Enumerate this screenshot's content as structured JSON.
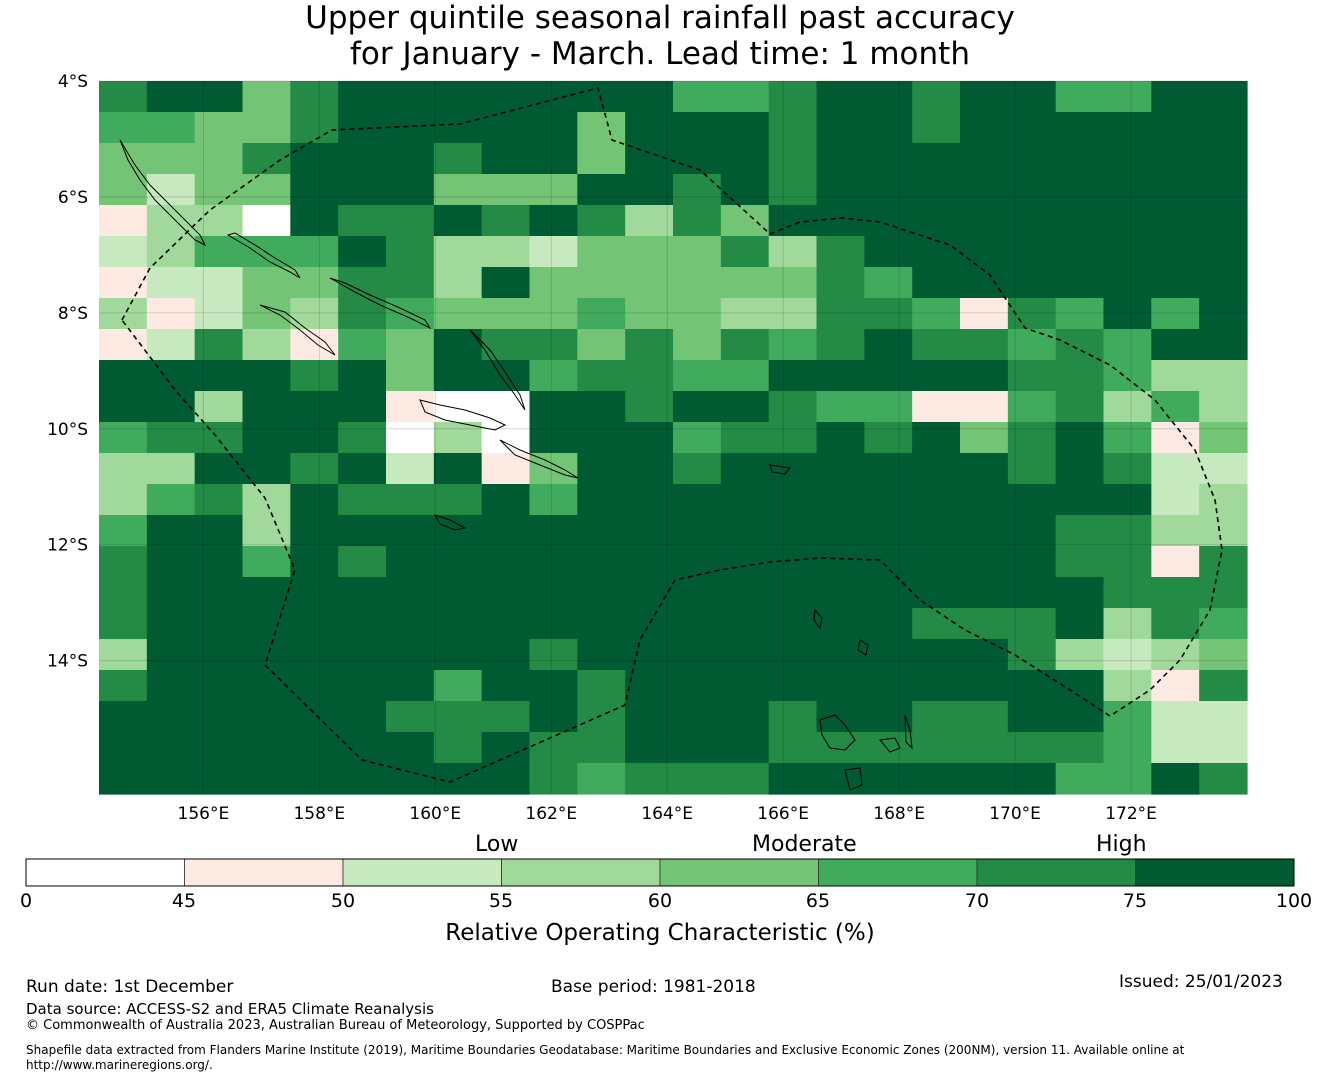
{
  "title": {
    "line1": "Upper quintile seasonal rainfall past accuracy",
    "line2": "for January - March. Lead time: 1 month"
  },
  "map": {
    "lat_labels": [
      "4°S",
      "6°S",
      "8°S",
      "10°S",
      "12°S",
      "14°S"
    ],
    "lon_labels": [
      "156°E",
      "158°E",
      "160°E",
      "162°E",
      "164°E",
      "166°E",
      "168°E",
      "170°E",
      "172°E"
    ],
    "lat_range": [
      -16.3,
      -4.0
    ],
    "lon_range": [
      154.2,
      174.0
    ],
    "grid_cols": 24,
    "grid_rows": 23,
    "grid_levels": [
      "000000000000000000000000",
      "000000000000000000000000",
      "000000000000000000000000",
      "000000000000000000000000",
      "000000000000000000000000",
      "000000000000000000000000",
      "000000000000000000000000",
      "000000000000000000000000",
      "000000000000000000000000",
      "000000000000000000000000",
      "000000000000000000000000",
      "000000000000000000000000",
      "000000000000000000000000",
      "000000000000000000000000",
      "000000000000000000000000",
      "000000000000000000000000",
      "000000000000000000000000",
      "000000000000000000000000",
      "000000000000000000000000",
      "000000000000000000000000",
      "000000000000000000000000",
      "000000000000000000000000",
      "000000000000000000000000"
    ],
    "grid_overrides": [
      [
        0,
        0,
        1
      ],
      [
        0,
        1,
        0
      ],
      [
        0,
        2,
        0
      ],
      [
        0,
        3,
        3
      ],
      [
        0,
        4,
        1
      ],
      [
        0,
        12,
        2
      ],
      [
        0,
        13,
        2
      ],
      [
        0,
        14,
        1
      ],
      [
        0,
        17,
        1
      ],
      [
        0,
        20,
        2
      ],
      [
        0,
        21,
        2
      ],
      [
        1,
        0,
        2
      ],
      [
        1,
        1,
        2
      ],
      [
        1,
        2,
        3
      ],
      [
        1,
        3,
        3
      ],
      [
        1,
        4,
        1
      ],
      [
        1,
        10,
        3
      ],
      [
        1,
        14,
        1
      ],
      [
        1,
        17,
        1
      ],
      [
        2,
        0,
        3
      ],
      [
        2,
        1,
        3
      ],
      [
        2,
        2,
        3
      ],
      [
        2,
        3,
        1
      ],
      [
        2,
        7,
        1
      ],
      [
        2,
        10,
        3
      ],
      [
        2,
        14,
        1
      ],
      [
        3,
        0,
        3
      ],
      [
        3,
        1,
        5
      ],
      [
        3,
        2,
        3
      ],
      [
        3,
        3,
        3
      ],
      [
        3,
        7,
        3
      ],
      [
        3,
        8,
        3
      ],
      [
        3,
        9,
        3
      ],
      [
        3,
        12,
        1
      ],
      [
        3,
        14,
        1
      ],
      [
        4,
        0,
        6
      ],
      [
        4,
        1,
        4
      ],
      [
        4,
        2,
        4
      ],
      [
        4,
        3,
        9
      ],
      [
        4,
        5,
        1
      ],
      [
        4,
        6,
        1
      ],
      [
        4,
        8,
        1
      ],
      [
        4,
        10,
        1
      ],
      [
        4,
        11,
        4
      ],
      [
        4,
        12,
        1
      ],
      [
        4,
        13,
        3
      ],
      [
        5,
        0,
        5
      ],
      [
        5,
        1,
        4
      ],
      [
        5,
        2,
        2
      ],
      [
        5,
        3,
        2
      ],
      [
        5,
        4,
        2
      ],
      [
        5,
        6,
        1
      ],
      [
        5,
        7,
        4
      ],
      [
        5,
        8,
        4
      ],
      [
        5,
        9,
        5
      ],
      [
        5,
        10,
        3
      ],
      [
        5,
        11,
        3
      ],
      [
        5,
        12,
        3
      ],
      [
        5,
        13,
        1
      ],
      [
        5,
        14,
        4
      ],
      [
        5,
        15,
        1
      ],
      [
        6,
        0,
        6
      ],
      [
        6,
        1,
        5
      ],
      [
        6,
        2,
        5
      ],
      [
        6,
        3,
        3
      ],
      [
        6,
        4,
        3
      ],
      [
        6,
        5,
        1
      ],
      [
        6,
        6,
        1
      ],
      [
        6,
        7,
        4
      ],
      [
        6,
        9,
        3
      ],
      [
        6,
        10,
        3
      ],
      [
        6,
        11,
        3
      ],
      [
        6,
        12,
        3
      ],
      [
        6,
        13,
        3
      ],
      [
        6,
        14,
        3
      ],
      [
        6,
        15,
        1
      ],
      [
        6,
        16,
        2
      ],
      [
        7,
        0,
        4
      ],
      [
        7,
        1,
        6
      ],
      [
        7,
        2,
        5
      ],
      [
        7,
        3,
        3
      ],
      [
        7,
        4,
        4
      ],
      [
        7,
        5,
        1
      ],
      [
        7,
        6,
        2
      ],
      [
        7,
        7,
        3
      ],
      [
        7,
        8,
        3
      ],
      [
        7,
        9,
        3
      ],
      [
        7,
        10,
        2
      ],
      [
        7,
        11,
        3
      ],
      [
        7,
        12,
        3
      ],
      [
        7,
        13,
        4
      ],
      [
        7,
        14,
        4
      ],
      [
        7,
        15,
        1
      ],
      [
        7,
        16,
        1
      ],
      [
        7,
        17,
        2
      ],
      [
        7,
        18,
        6
      ],
      [
        7,
        19,
        1
      ],
      [
        7,
        20,
        2
      ],
      [
        7,
        22,
        2
      ],
      [
        8,
        0,
        8
      ],
      [
        8,
        1,
        5
      ],
      [
        8,
        2,
        1
      ],
      [
        8,
        3,
        4
      ],
      [
        8,
        4,
        6
      ],
      [
        8,
        5,
        2
      ],
      [
        8,
        6,
        3
      ],
      [
        8,
        8,
        1
      ],
      [
        8,
        9,
        1
      ],
      [
        8,
        10,
        3
      ],
      [
        8,
        11,
        1
      ],
      [
        8,
        12,
        3
      ],
      [
        8,
        13,
        1
      ],
      [
        8,
        14,
        2
      ],
      [
        8,
        15,
        1
      ],
      [
        8,
        17,
        1
      ],
      [
        8,
        18,
        1
      ],
      [
        8,
        19,
        2
      ],
      [
        8,
        20,
        1
      ],
      [
        8,
        21,
        2
      ],
      [
        9,
        4,
        1
      ],
      [
        9,
        6,
        3
      ],
      [
        9,
        9,
        2
      ],
      [
        9,
        10,
        1
      ],
      [
        9,
        11,
        1
      ],
      [
        9,
        12,
        2
      ],
      [
        9,
        13,
        2
      ],
      [
        9,
        19,
        1
      ],
      [
        9,
        20,
        1
      ],
      [
        9,
        21,
        2
      ],
      [
        9,
        22,
        4
      ],
      [
        9,
        23,
        4
      ],
      [
        10,
        2,
        4
      ],
      [
        10,
        6,
        8
      ],
      [
        10,
        7,
        9
      ],
      [
        10,
        8,
        9
      ],
      [
        10,
        11,
        1
      ],
      [
        10,
        14,
        1
      ],
      [
        10,
        15,
        2
      ],
      [
        10,
        16,
        2
      ],
      [
        10,
        17,
        6
      ],
      [
        10,
        18,
        6
      ],
      [
        10,
        19,
        2
      ],
      [
        10,
        20,
        1
      ],
      [
        10,
        21,
        4
      ],
      [
        10,
        22,
        2
      ],
      [
        10,
        23,
        4
      ],
      [
        11,
        0,
        2
      ],
      [
        11,
        1,
        1
      ],
      [
        11,
        2,
        1
      ],
      [
        11,
        5,
        1
      ],
      [
        11,
        6,
        9
      ],
      [
        11,
        7,
        4
      ],
      [
        11,
        8,
        9
      ],
      [
        11,
        12,
        2
      ],
      [
        11,
        13,
        1
      ],
      [
        11,
        14,
        1
      ],
      [
        11,
        16,
        1
      ],
      [
        11,
        18,
        3
      ],
      [
        11,
        19,
        1
      ],
      [
        11,
        21,
        2
      ],
      [
        11,
        22,
        6
      ],
      [
        11,
        23,
        3
      ],
      [
        12,
        0,
        4
      ],
      [
        12,
        1,
        4
      ],
      [
        12,
        4,
        1
      ],
      [
        12,
        6,
        5
      ],
      [
        12,
        8,
        6
      ],
      [
        12,
        9,
        3
      ],
      [
        12,
        12,
        1
      ],
      [
        12,
        19,
        1
      ],
      [
        12,
        21,
        1
      ],
      [
        12,
        22,
        5
      ],
      [
        12,
        23,
        5
      ],
      [
        13,
        0,
        4
      ],
      [
        13,
        1,
        2
      ],
      [
        13,
        2,
        1
      ],
      [
        13,
        3,
        4
      ],
      [
        13,
        5,
        1
      ],
      [
        13,
        6,
        1
      ],
      [
        13,
        7,
        1
      ],
      [
        13,
        9,
        2
      ],
      [
        13,
        22,
        5
      ],
      [
        13,
        23,
        4
      ],
      [
        14,
        0,
        2
      ],
      [
        14,
        3,
        4
      ],
      [
        14,
        20,
        1
      ],
      [
        14,
        21,
        1
      ],
      [
        14,
        22,
        4
      ],
      [
        14,
        23,
        4
      ],
      [
        15,
        0,
        1
      ],
      [
        15,
        3,
        2
      ],
      [
        15,
        5,
        1
      ],
      [
        15,
        20,
        1
      ],
      [
        15,
        21,
        1
      ],
      [
        15,
        22,
        6
      ],
      [
        15,
        23,
        1
      ],
      [
        16,
        0,
        1
      ],
      [
        16,
        21,
        1
      ],
      [
        16,
        22,
        1
      ],
      [
        16,
        23,
        1
      ],
      [
        17,
        0,
        1
      ],
      [
        17,
        17,
        1
      ],
      [
        17,
        18,
        1
      ],
      [
        17,
        19,
        1
      ],
      [
        17,
        21,
        4
      ],
      [
        17,
        22,
        1
      ],
      [
        17,
        23,
        2
      ],
      [
        18,
        0,
        4
      ],
      [
        18,
        9,
        1
      ],
      [
        18,
        19,
        1
      ],
      [
        18,
        20,
        4
      ],
      [
        18,
        21,
        5
      ],
      [
        18,
        22,
        4
      ],
      [
        18,
        23,
        3
      ],
      [
        19,
        0,
        1
      ],
      [
        19,
        7,
        2
      ],
      [
        19,
        10,
        1
      ],
      [
        19,
        21,
        4
      ],
      [
        19,
        22,
        6
      ],
      [
        19,
        23,
        1
      ],
      [
        20,
        6,
        1
      ],
      [
        20,
        7,
        1
      ],
      [
        20,
        8,
        1
      ],
      [
        20,
        10,
        1
      ],
      [
        20,
        14,
        1
      ],
      [
        20,
        17,
        1
      ],
      [
        20,
        18,
        1
      ],
      [
        20,
        21,
        2
      ],
      [
        20,
        22,
        5
      ],
      [
        20,
        23,
        5
      ],
      [
        21,
        7,
        1
      ],
      [
        21,
        9,
        1
      ],
      [
        21,
        10,
        1
      ],
      [
        21,
        14,
        1
      ],
      [
        21,
        15,
        1
      ],
      [
        21,
        16,
        1
      ],
      [
        21,
        17,
        1
      ],
      [
        21,
        18,
        1
      ],
      [
        21,
        19,
        1
      ],
      [
        21,
        20,
        1
      ],
      [
        21,
        21,
        2
      ],
      [
        21,
        22,
        5
      ],
      [
        21,
        23,
        5
      ],
      [
        22,
        9,
        1
      ],
      [
        22,
        10,
        2
      ],
      [
        22,
        11,
        1
      ],
      [
        22,
        12,
        1
      ],
      [
        22,
        13,
        1
      ],
      [
        22,
        20,
        2
      ],
      [
        22,
        21,
        2
      ],
      [
        22,
        23,
        1
      ]
    ]
  },
  "colorbar": {
    "category_labels": [
      "Low",
      "Moderate",
      "High"
    ],
    "bins": [
      {
        "from": 0,
        "to": 45,
        "color": "#ffffff"
      },
      {
        "from": 45,
        "to": 50,
        "color": "#fdebe3"
      },
      {
        "from": 50,
        "to": 55,
        "color": "#c7e9c0"
      },
      {
        "from": 55,
        "to": 60,
        "color": "#a1d99b"
      },
      {
        "from": 60,
        "to": 65,
        "color": "#74c476"
      },
      {
        "from": 65,
        "to": 70,
        "color": "#41ab5d"
      },
      {
        "from": 70,
        "to": 75,
        "color": "#238b45"
      },
      {
        "from": 75,
        "to": 100,
        "color": "#005a32"
      }
    ],
    "tick_labels": [
      "0",
      "45",
      "50",
      "55",
      "60",
      "65",
      "70",
      "75",
      "100"
    ],
    "title": "Relative Operating Characteristic (%)"
  },
  "level_colors": [
    "#005a32",
    "#238b45",
    "#41ab5d",
    "#74c476",
    "#a1d99b",
    "#c7e9c0",
    "#fdebe3",
    "#ffffff",
    "#fdebe3",
    "#ffffff"
  ],
  "footer": {
    "run_date": "Run date: 1st December",
    "base_period": "Base period: 1981-2018",
    "issued": "Issued: 25/01/2023",
    "data_source": "Data source: ACCESS-S2 and ERA5 Climate Reanalysis",
    "copyright": "© Commonwealth of Australia 2023, Australian Bureau of Meteorology, Supported by COSPPac",
    "shapefile_line1": "Shapefile data extracted from Flanders Marine Institute (2019), Maritime Boundaries Geodatabase: Maritime Boundaries and Exclusive Economic Zones (200NM), version 11. Available online at",
    "shapefile_line2": "http://www.marineregions.org/."
  }
}
